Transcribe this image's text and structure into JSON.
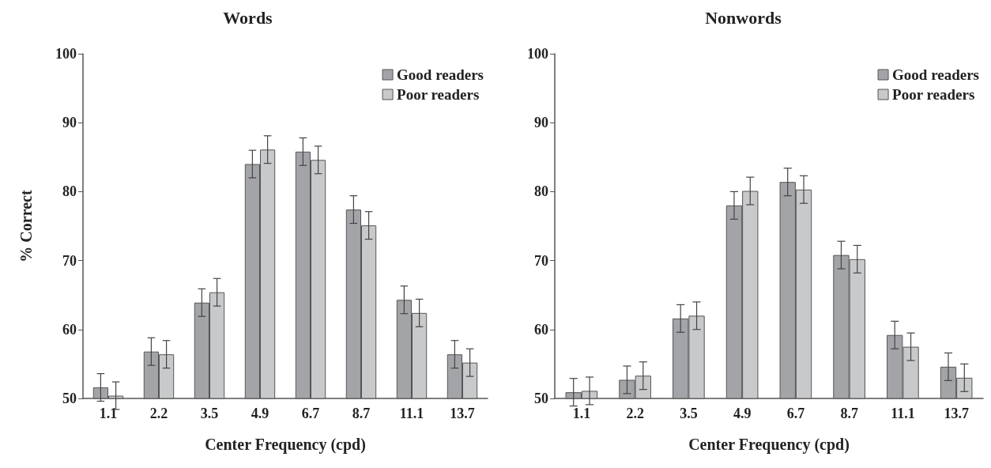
{
  "chart_data": [
    {
      "type": "bar",
      "title": "Words",
      "xlabel": "Center Frequency (cpd)",
      "ylabel": "% Correct",
      "categories": [
        "1.1",
        "2.2",
        "3.5",
        "4.9",
        "6.7",
        "8.7",
        "11.1",
        "13.7"
      ],
      "series": [
        {
          "name": "Good readers",
          "color": "#a3a4a8",
          "values": [
            51.6,
            56.8,
            63.9,
            84.0,
            85.8,
            77.4,
            64.3,
            56.4
          ],
          "errors": [
            2,
            2,
            2,
            2,
            2,
            2,
            2,
            2
          ]
        },
        {
          "name": "Poor readers",
          "color": "#c8c9cb",
          "values": [
            50.4,
            56.4,
            65.4,
            86.1,
            84.6,
            75.1,
            62.4,
            55.2
          ],
          "errors": [
            2,
            2,
            2,
            2,
            2,
            2,
            2,
            2
          ]
        }
      ],
      "ylim": [
        50,
        100
      ],
      "yticks": [
        50,
        60,
        70,
        80,
        90,
        100
      ],
      "grid": false,
      "legend": "top right"
    },
    {
      "type": "bar",
      "title": "Nonwords",
      "xlabel": "Center Frequency (cpd)",
      "categories": [
        "1.1",
        "2.2",
        "3.5",
        "4.9",
        "6.7",
        "8.7",
        "11.1",
        "13.7"
      ],
      "series": [
        {
          "name": "Good readers",
          "color": "#a3a4a8",
          "values": [
            50.9,
            52.7,
            61.6,
            78.0,
            81.4,
            70.8,
            59.2,
            54.6
          ],
          "errors": [
            2,
            2,
            2,
            2,
            2,
            2,
            2,
            2
          ]
        },
        {
          "name": "Poor readers",
          "color": "#c8c9cb",
          "values": [
            51.1,
            53.3,
            62.0,
            80.1,
            80.3,
            70.2,
            57.5,
            53.0
          ],
          "errors": [
            2,
            2,
            2,
            2,
            2,
            2,
            2,
            2
          ]
        }
      ],
      "ylim": [
        50,
        100
      ],
      "yticks": [
        50,
        60,
        70,
        80,
        90,
        100
      ],
      "grid": false,
      "legend": "top right"
    }
  ]
}
